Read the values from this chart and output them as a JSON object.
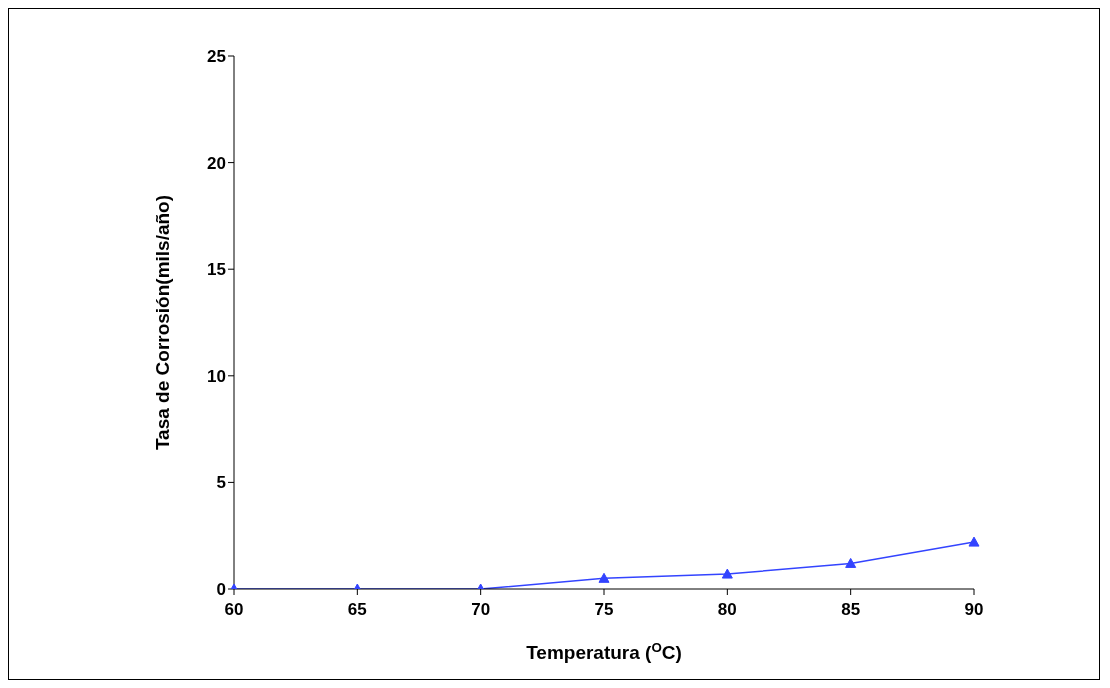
{
  "chart_data": {
    "type": "line",
    "xlabel": "Temperatura ($^{O}$C)",
    "ylabel": "Tasa de Corrosión(mils/año)",
    "x": [
      60,
      65,
      70,
      75,
      80,
      85,
      90
    ],
    "series": [
      {
        "color": "#3344ff",
        "values": [
          0,
          0,
          0,
          0.5,
          0.7,
          1.2,
          2.2
        ]
      }
    ],
    "xlim": [
      60,
      90
    ],
    "xticks": [
      60,
      65,
      70,
      75,
      80,
      85,
      90
    ],
    "ylim": [
      0,
      25
    ],
    "yticks": [
      0,
      5,
      10,
      15,
      20,
      25
    ],
    "grid": false,
    "legend": false,
    "marker": "triangle",
    "line_style": "solid"
  }
}
